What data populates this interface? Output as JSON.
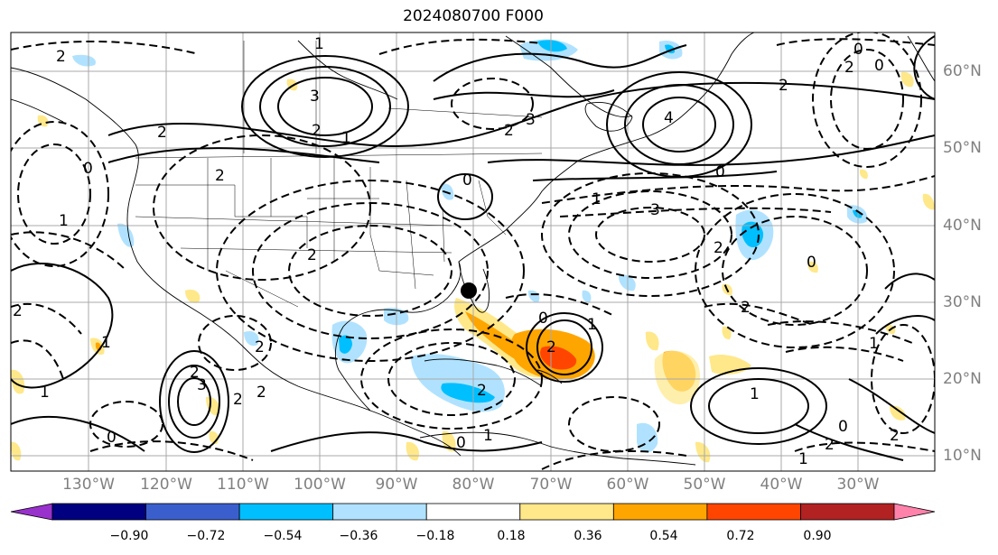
{
  "title": "2024080700 F000",
  "lon_labels": [
    "130°W",
    "120°W",
    "110°W",
    "100°W",
    "90°W",
    "80°W",
    "70°W",
    "60°W",
    "50°W",
    "40°W",
    "30°W"
  ],
  "lat_labels": [
    "60°N",
    "50°N",
    "40°N",
    "30°N",
    "20°N",
    "10°N"
  ],
  "colorbar": {
    "labels": [
      "−0.90",
      "−0.72",
      "−0.54",
      "−0.36",
      "−0.18",
      "0.18",
      "0.36",
      "0.54",
      "0.72",
      "0.90"
    ],
    "colors": [
      "#9932cc",
      "#000080",
      "#3a5fcd",
      "#00bfff",
      "#b0e2ff",
      "#ffffff",
      "#ffe88a",
      "#ffa500",
      "#ff4500",
      "#b22222",
      "#ff82ab"
    ]
  },
  "contour_labels": [
    "2",
    "1",
    "3",
    "2",
    "1",
    "0",
    "2",
    "3",
    "2",
    "4",
    "0",
    "2",
    "0",
    "2",
    "1",
    "3",
    "2",
    "0",
    "1",
    "2",
    "3",
    "2",
    "2",
    "2",
    "1",
    "0",
    "1",
    "2",
    "0",
    "2",
    "1",
    "2",
    "1",
    "0",
    "2",
    "1",
    "2",
    "1",
    "0",
    "2",
    "2",
    "2",
    "0",
    "1",
    "0"
  ],
  "marker": {
    "type": "black-dot",
    "lon": -80.5,
    "lat": 31.5
  }
}
